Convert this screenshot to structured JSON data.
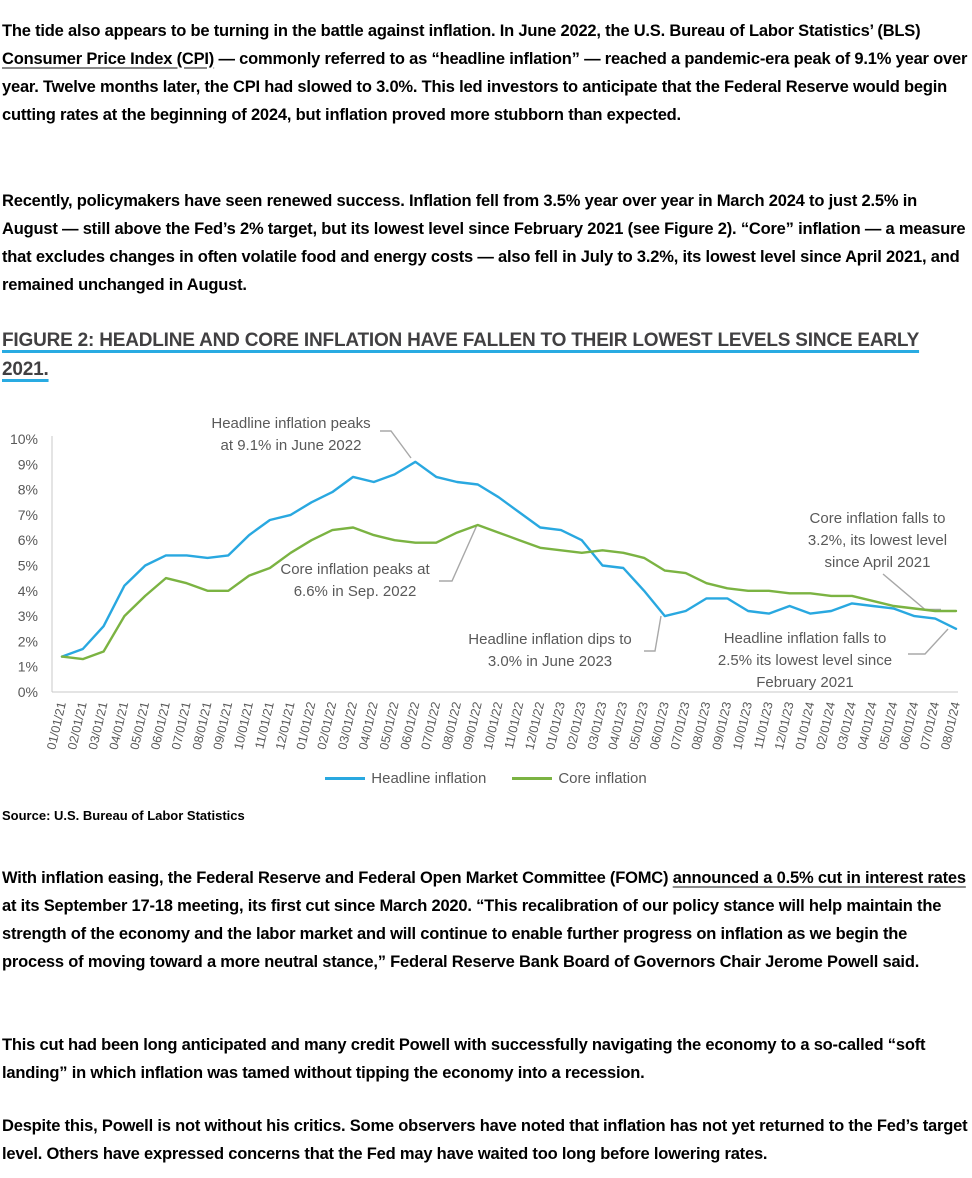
{
  "article": {
    "p1": {
      "before": "The tide also appears to be turning in the battle against inflation. In June 2022, the U.S. Bureau of Labor Statistics’ (BLS) ",
      "link": "Consumer Price Index (CPI)",
      "after": " — commonly referred to as “headline inflation” — reached a pandemic-era peak of 9.1% year over year. Twelve months later, the CPI had slowed to 3.0%. This led investors to anticipate that the Federal Reserve would begin cutting rates at the beginning of 2024, but inflation proved more stubborn than expected."
    },
    "p2": "Recently, policymakers have seen renewed success. Inflation fell from 3.5% year over year in March 2024 to just 2.5% in August — still above the Fed’s 2% target, but its lowest level since February 2021 (see Figure 2). “Core” inflation — a measure that excludes changes in often volatile food and energy costs — also fell in July to 3.2%, its lowest level since April 2021, and remained unchanged in August.",
    "figure_title": "FIGURE 2: HEADLINE AND CORE INFLATION HAVE FALLEN TO THEIR LOWEST LEVELS SINCE EARLY 2021.",
    "source": "Source: U.S. Bureau of Labor Statistics",
    "p3": {
      "before": "With inflation easing, the Federal Reserve and Federal Open Market Committee (FOMC) ",
      "link": "announced a 0.5% cut in interest rates",
      "after": " at its September 17-18 meeting, its first cut since March 2020. “This recalibration of our policy stance will help maintain the strength of the economy and the labor market and will continue to enable further progress on inflation as we begin the process of moving toward a more neutral stance,” Federal Reserve Bank Board of Governors Chair Jerome Powell said."
    },
    "p4": "This cut had been long anticipated and many credit Powell with successfully navigating the economy to a so-called “soft landing” in which inflation was tamed without tipping the economy into a recession.",
    "p5": "Despite this, Powell is not without his critics. Some observers have noted that inflation has not yet returned to the Fed’s target level. Others have expressed concerns that the Fed may have waited too long before lowering rates."
  },
  "colors": {
    "headline_blue": "#29A8E0",
    "core_green": "#7BB342",
    "heading_underline": "#29ABE2",
    "chart_text": "#595959",
    "axis_line": "#C9C9C9",
    "leader_line": "#A8A8A8"
  },
  "chart_data": {
    "type": "line",
    "title": "",
    "xlabel": "",
    "ylabel": "",
    "ylim": [
      0,
      10
    ],
    "y_tick_step": 1,
    "y_tick_suffix": "%",
    "grid": false,
    "legend_position": "bottom",
    "categories": [
      "01/01/21",
      "02/01/21",
      "03/01/21",
      "04/01/21",
      "05/01/21",
      "06/01/21",
      "07/01/21",
      "08/01/21",
      "09/01/21",
      "10/01/21",
      "11/01/21",
      "12/01/21",
      "01/01/22",
      "02/01/22",
      "03/01/22",
      "04/01/22",
      "05/01/22",
      "06/01/22",
      "07/01/22",
      "08/01/22",
      "09/01/22",
      "10/01/22",
      "11/01/22",
      "12/01/22",
      "01/01/23",
      "02/01/23",
      "03/01/23",
      "04/01/23",
      "05/01/23",
      "06/01/23",
      "07/01/23",
      "08/01/23",
      "09/01/23",
      "10/01/23",
      "11/01/23",
      "12/01/23",
      "01/01/24",
      "02/01/24",
      "03/01/24",
      "04/01/24",
      "05/01/24",
      "06/01/24",
      "07/01/24",
      "08/01/24"
    ],
    "series": [
      {
        "name": "Headline inflation",
        "color": "#29A8E0",
        "values": [
          1.4,
          1.7,
          2.6,
          4.2,
          5.0,
          5.4,
          5.4,
          5.3,
          5.4,
          6.2,
          6.8,
          7.0,
          7.5,
          7.9,
          8.5,
          8.3,
          8.6,
          9.1,
          8.5,
          8.3,
          8.2,
          7.7,
          7.1,
          6.5,
          6.4,
          6.0,
          5.0,
          4.9,
          4.0,
          3.0,
          3.2,
          3.7,
          3.7,
          3.2,
          3.1,
          3.4,
          3.1,
          3.2,
          3.5,
          3.4,
          3.3,
          3.0,
          2.9,
          2.5
        ]
      },
      {
        "name": "Core inflation",
        "color": "#7BB342",
        "values": [
          1.4,
          1.3,
          1.6,
          3.0,
          3.8,
          4.5,
          4.3,
          4.0,
          4.0,
          4.6,
          4.9,
          5.5,
          6.0,
          6.4,
          6.5,
          6.2,
          6.0,
          5.9,
          5.9,
          6.3,
          6.6,
          6.3,
          6.0,
          5.7,
          5.6,
          5.5,
          5.6,
          5.5,
          5.3,
          4.8,
          4.7,
          4.3,
          4.1,
          4.0,
          4.0,
          3.9,
          3.9,
          3.8,
          3.8,
          3.6,
          3.4,
          3.3,
          3.2,
          3.2
        ]
      }
    ],
    "annotations": [
      {
        "id": "headline-peak",
        "text": "Headline inflation peaks\nat 9.1% in June 2022"
      },
      {
        "id": "core-peak",
        "text": "Core inflation peaks at\n6.6% in Sep. 2022"
      },
      {
        "id": "headline-dip",
        "text": "Headline inflation dips to\n3.0% in June 2023"
      },
      {
        "id": "headline-low",
        "text": "Headline inflation falls to\n2.5% its lowest level since\nFebruary 2021"
      },
      {
        "id": "core-low",
        "text": "Core inflation falls to\n3.2%, its lowest level\nsince April 2021"
      }
    ]
  }
}
